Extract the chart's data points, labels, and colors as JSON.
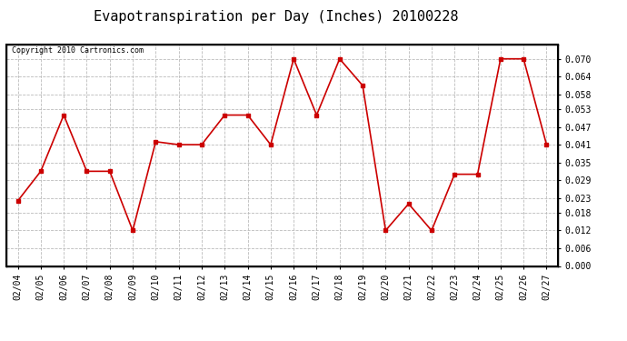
{
  "title": "Evapotranspiration per Day (Inches) 20100228",
  "copyright": "Copyright 2010 Cartronics.com",
  "dates": [
    "02/04",
    "02/05",
    "02/06",
    "02/07",
    "02/08",
    "02/09",
    "02/10",
    "02/11",
    "02/12",
    "02/13",
    "02/14",
    "02/15",
    "02/16",
    "02/17",
    "02/18",
    "02/19",
    "02/20",
    "02/21",
    "02/22",
    "02/23",
    "02/24",
    "02/25",
    "02/26",
    "02/27"
  ],
  "values": [
    0.022,
    0.032,
    0.051,
    0.032,
    0.032,
    0.012,
    0.042,
    0.041,
    0.041,
    0.051,
    0.051,
    0.041,
    0.07,
    0.051,
    0.07,
    0.061,
    0.012,
    0.021,
    0.012,
    0.031,
    0.031,
    0.07,
    0.07,
    0.041
  ],
  "line_color": "#cc0000",
  "marker": "s",
  "marker_size": 3,
  "background_color": "#ffffff",
  "plot_bg_color": "#ffffff",
  "grid_color": "#bbbbbb",
  "grid_style": "--",
  "ylim": [
    0.0,
    0.0749
  ],
  "yticks": [
    0.0,
    0.006,
    0.012,
    0.018,
    0.023,
    0.029,
    0.035,
    0.041,
    0.047,
    0.053,
    0.058,
    0.064,
    0.07
  ],
  "title_fontsize": 11,
  "copyright_fontsize": 6,
  "tick_fontsize": 7,
  "border_color": "#000000"
}
